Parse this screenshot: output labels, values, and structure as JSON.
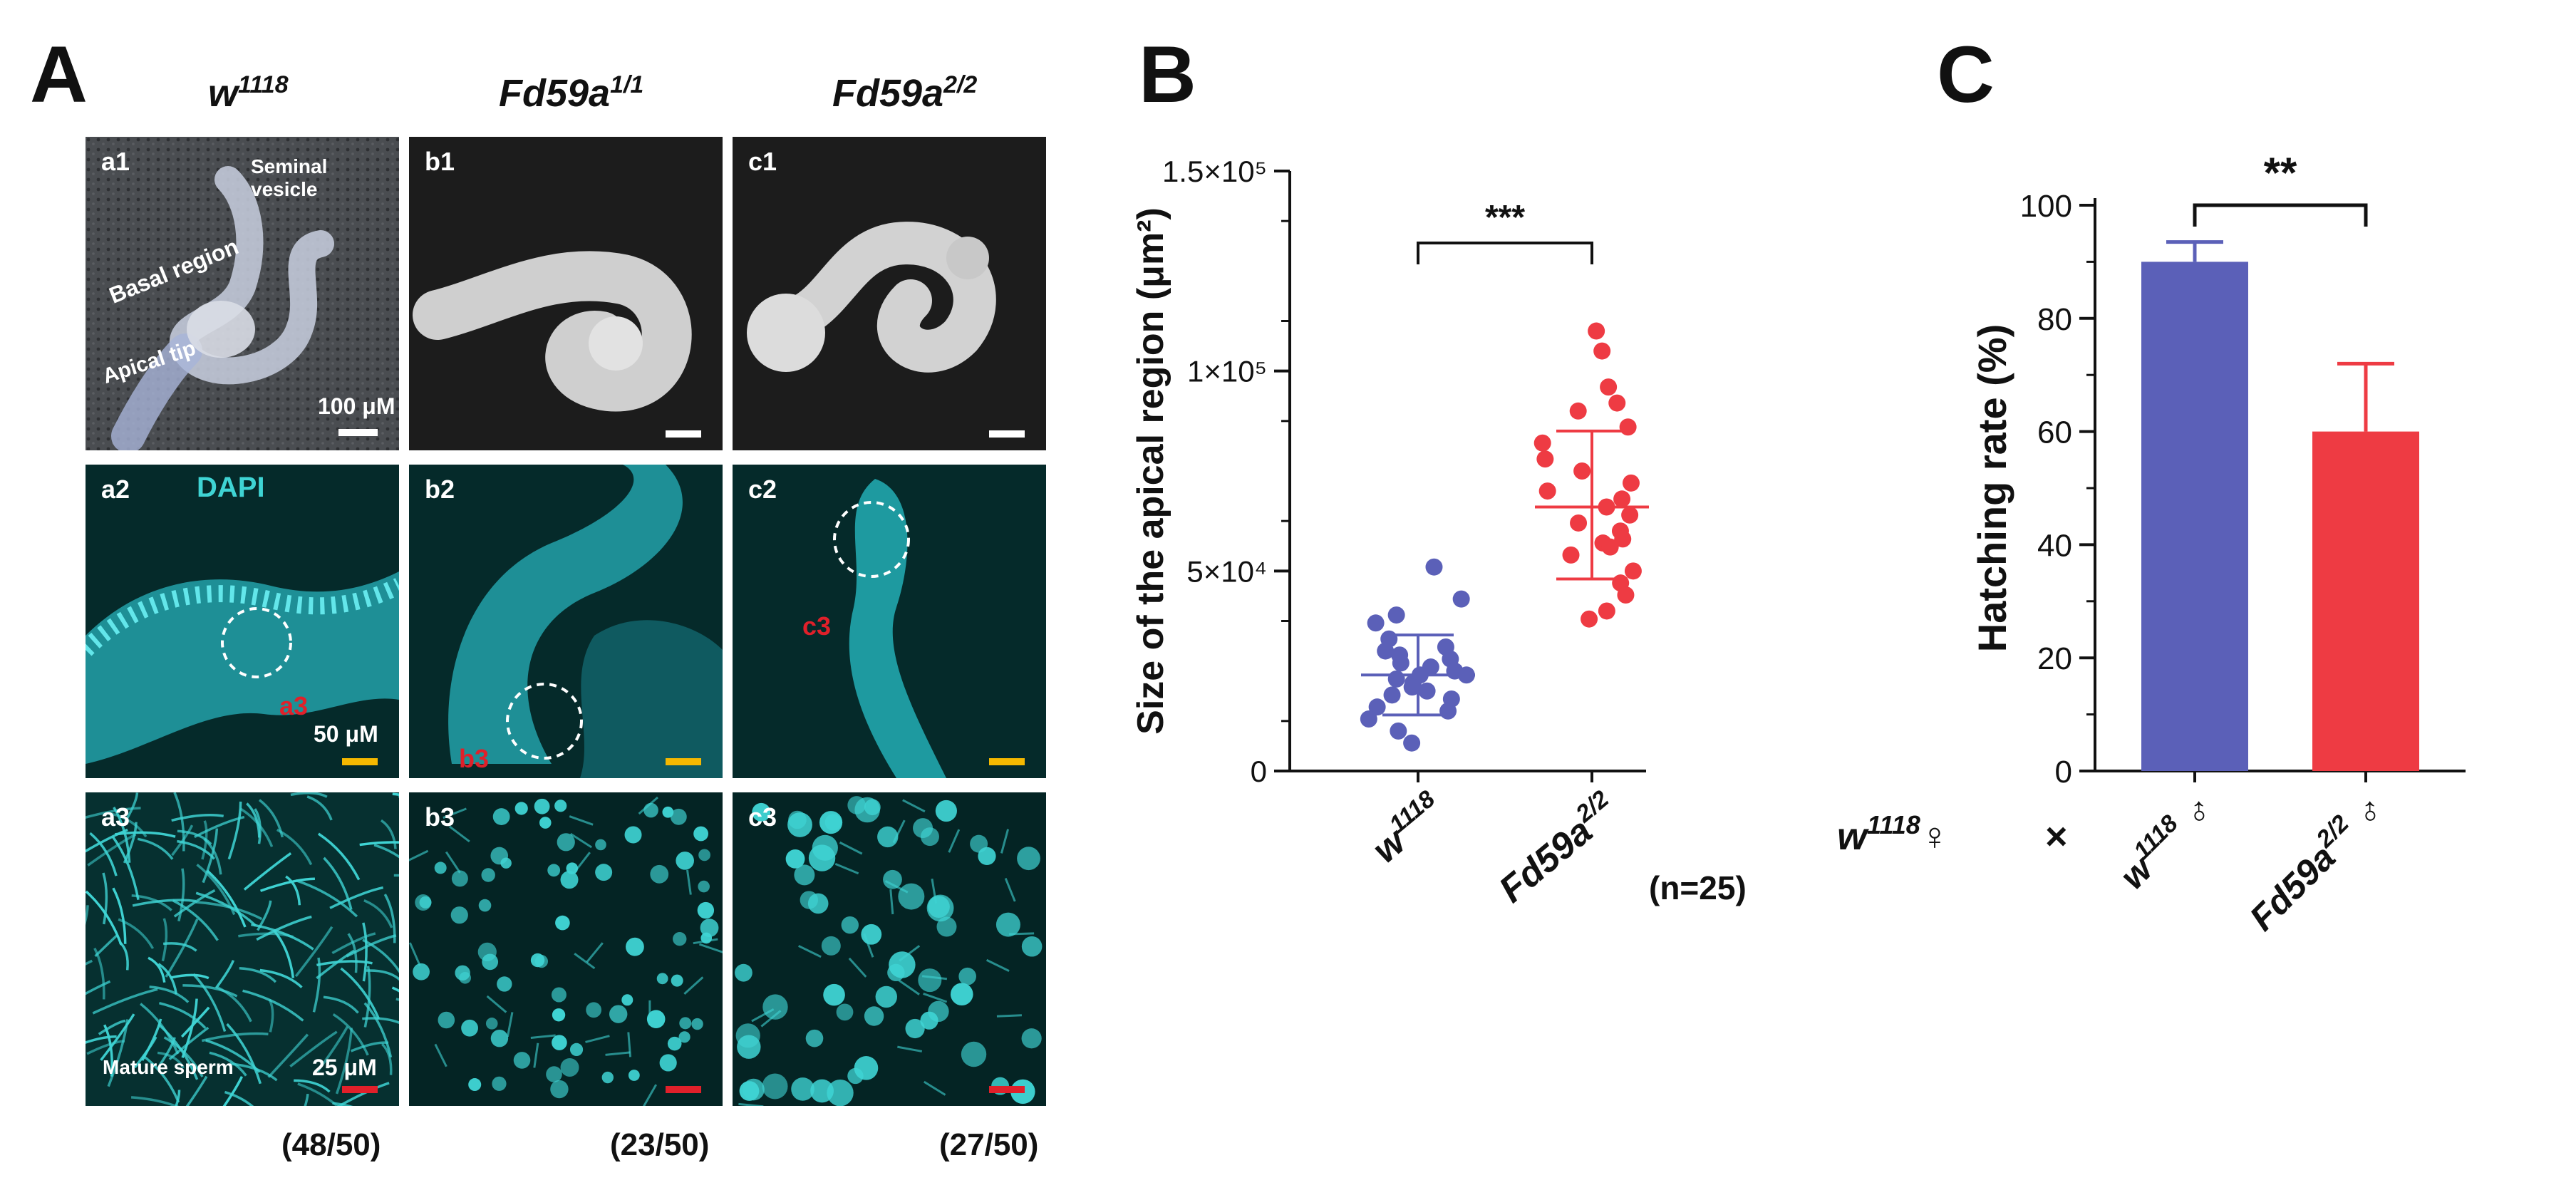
{
  "panel_a": {
    "letter": "A",
    "genotypes": [
      {
        "base": "w",
        "sup": "1118"
      },
      {
        "base": "Fd59a",
        "sup": "1/1"
      },
      {
        "base": "Fd59a",
        "sup": "2/2"
      }
    ],
    "tiles": [
      {
        "label": "a1",
        "annotations": [
          "Seminal vesicle",
          "Basal region",
          "Apical tip"
        ],
        "scale": "100 μM"
      },
      {
        "label": "b1"
      },
      {
        "label": "c1"
      },
      {
        "label": "a2",
        "stain": "DAPI",
        "inset_label": "a3",
        "scale": "50 μM"
      },
      {
        "label": "b2",
        "inset_label": "b3"
      },
      {
        "label": "c2",
        "inset_label": "c3"
      },
      {
        "label": "a3",
        "annotation": "Mature sperm",
        "scale": "25 μM"
      },
      {
        "label": "b3"
      },
      {
        "label": "c3"
      }
    ],
    "counts": [
      "(48/50)",
      "(23/50)",
      "(27/50)"
    ],
    "colors": {
      "stain": "#3fd4d4",
      "scale_yellow": "#f5b800",
      "scale_red": "#e0202a",
      "label_red": "#e0202a"
    }
  },
  "panel_b": {
    "letter": "B",
    "significance": "***",
    "n_label": "(n=25)",
    "chart_data": {
      "type": "scatter",
      "ylabel": "Size of the apical region (μm²)",
      "ylim": [
        0,
        150000
      ],
      "yticks": [
        {
          "value": 0,
          "label": "0"
        },
        {
          "value": 50000,
          "label": "5×10⁴"
        },
        {
          "value": 100000,
          "label": "1×10⁵"
        },
        {
          "value": 150000,
          "label": "1.5×10⁵"
        }
      ],
      "series": [
        {
          "category": "w1118",
          "label_base": "w",
          "label_sup": "1118",
          "color": "#5b60b8",
          "mean": 24000,
          "sd_low": 14000,
          "sd_high": 34000,
          "values": [
            51000,
            43000,
            39000,
            37000,
            33000,
            31000,
            30000,
            29000,
            28000,
            27000,
            26000,
            25000,
            24000,
            24000,
            23000,
            22000,
            21000,
            20000,
            19000,
            18000,
            16000,
            15000,
            13000,
            10000,
            7000
          ]
        },
        {
          "category": "Fd59a2/2",
          "label_base": "Fd59a",
          "label_sup": "2/2",
          "color": "#ee3b43",
          "mean": 66000,
          "sd_low": 48000,
          "sd_high": 85000,
          "values": [
            110000,
            105000,
            96000,
            92000,
            90000,
            86000,
            82000,
            78000,
            75000,
            72000,
            70000,
            68000,
            66000,
            64000,
            62000,
            60000,
            58000,
            57000,
            56000,
            54000,
            50000,
            47000,
            44000,
            40000,
            38000
          ]
        }
      ]
    }
  },
  "panel_c": {
    "letter": "C",
    "significance": "**",
    "cross_female": {
      "base": "w",
      "sup": "1118",
      "symbol": "♀",
      "times": "×"
    },
    "chart_data": {
      "type": "bar",
      "ylabel": "Hatching rate (%)",
      "ylim": [
        0,
        100
      ],
      "yticks": [
        0,
        20,
        40,
        60,
        80,
        100
      ],
      "categories": [
        {
          "base": "w",
          "sup": "1118",
          "symbol": "♂"
        },
        {
          "base": "Fd59a",
          "sup": "2/2",
          "symbol": "♂"
        }
      ],
      "values": [
        90,
        60
      ],
      "errors": [
        3.5,
        12
      ],
      "colors": [
        "#5b60b8",
        "#ee3b43"
      ]
    }
  }
}
